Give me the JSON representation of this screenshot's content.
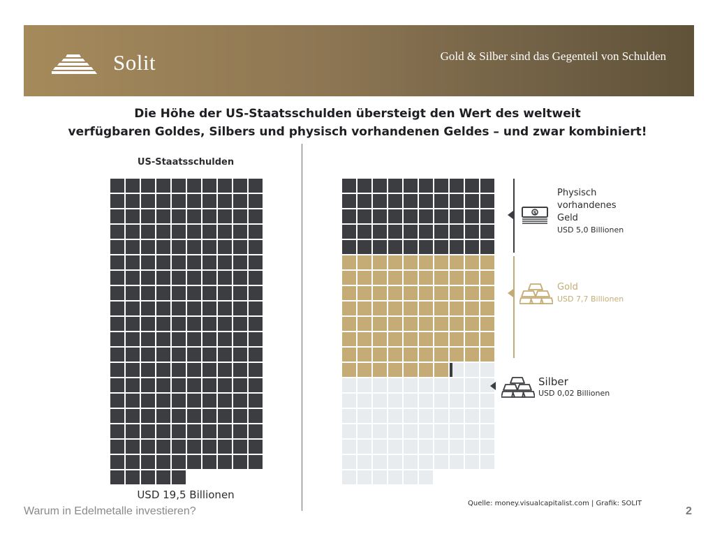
{
  "header": {
    "brand": "Solit",
    "tagline": "Gold & Silber sind das Gegenteil von Schulden",
    "logo_icon": "stacked-bars-pyramid-icon"
  },
  "headline": {
    "line1": "Die Höhe der US-Staatsschulden übersteigt den Wert des weltweit",
    "line2": "verfügbaren Goldes, Silbers und physisch vorhandenen Geldes – und zwar kombiniert!"
  },
  "chart_data": {
    "type": "waffle",
    "unit": "USD Billionen",
    "left_panel": {
      "title": "US-Staatsschulden",
      "label": "USD 19,5 Billionen",
      "value": 19.5,
      "squares": 195,
      "color": "#3b3d40"
    },
    "right_panel": {
      "series": [
        {
          "name": "Physisch vorhandenes Geld",
          "name_lines": [
            "Physisch",
            "vorhandenes",
            "Geld"
          ],
          "label": "USD 5,0 Billionen",
          "value": 5.0,
          "squares": 50,
          "color": "#3b3d40",
          "icon": "banknotes-icon"
        },
        {
          "name": "Gold",
          "name_lines": [
            "Gold"
          ],
          "label": "USD 7,7 Billionen",
          "value": 7.7,
          "squares": 77,
          "color": "#c5ac76",
          "icon": "gold-bars-icon"
        },
        {
          "name": "Silber",
          "name_lines": [
            "Silber"
          ],
          "label": "USD 0,02 Billionen",
          "value": 0.02,
          "squares": 0.2,
          "color": "#3b3d40",
          "icon": "silver-bars-icon"
        }
      ],
      "remainder_squares": 68,
      "remainder_color": "#e9ecef"
    }
  },
  "source": "Quelle: money.visualcapitalist.com | Grafik: SOLIT",
  "footer": {
    "title": "Warum in Edelmetalle investieren?",
    "page": "2"
  }
}
